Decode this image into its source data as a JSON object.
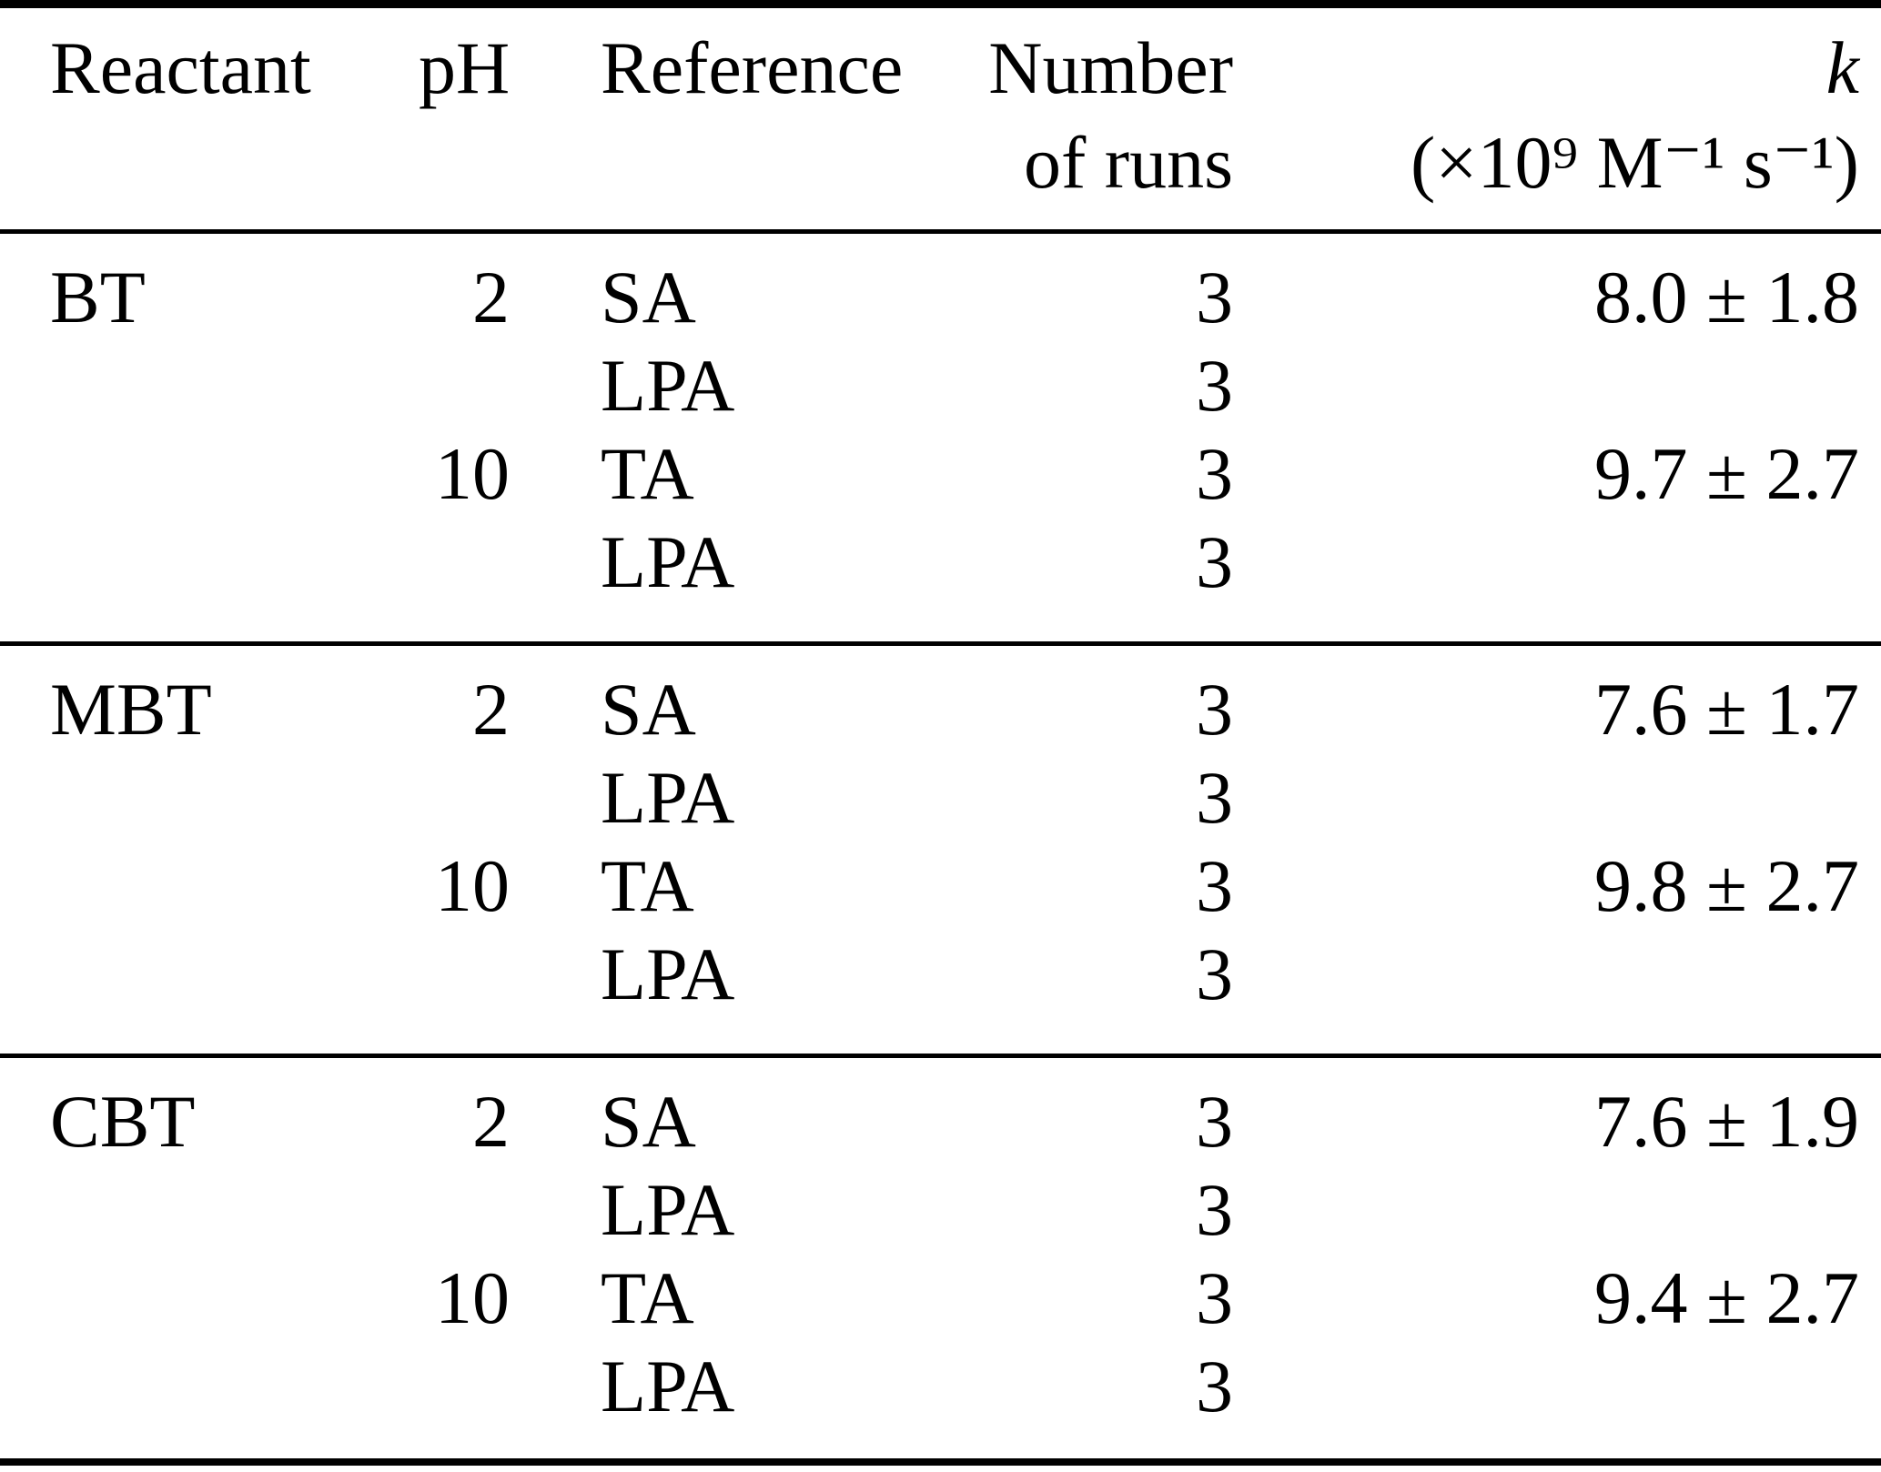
{
  "colors": {
    "text": "#000000",
    "background": "#ffffff",
    "rule": "#000000"
  },
  "table": {
    "columns": {
      "reactant": "Reactant",
      "ph": "pH",
      "reference": "Reference",
      "runs_line1": "Number",
      "runs_line2": "of runs",
      "k_symbol": "k",
      "k_unit": "(×10⁹ M⁻¹ s⁻¹)"
    },
    "sections": [
      {
        "reactant": "BT",
        "rows": [
          {
            "ph": "2",
            "reference": "SA",
            "runs": "3",
            "k": "8.0 ± 1.8"
          },
          {
            "ph": "",
            "reference": "LPA",
            "runs": "3",
            "k": ""
          },
          {
            "ph": "10",
            "reference": "TA",
            "runs": "3",
            "k": "9.7 ± 2.7"
          },
          {
            "ph": "",
            "reference": "LPA",
            "runs": "3",
            "k": ""
          }
        ]
      },
      {
        "reactant": "MBT",
        "rows": [
          {
            "ph": "2",
            "reference": "SA",
            "runs": "3",
            "k": "7.6 ± 1.7"
          },
          {
            "ph": "",
            "reference": "LPA",
            "runs": "3",
            "k": ""
          },
          {
            "ph": "10",
            "reference": "TA",
            "runs": "3",
            "k": "9.8 ± 2.7"
          },
          {
            "ph": "",
            "reference": "LPA",
            "runs": "3",
            "k": ""
          }
        ]
      },
      {
        "reactant": "CBT",
        "rows": [
          {
            "ph": "2",
            "reference": "SA",
            "runs": "3",
            "k": "7.6 ± 1.9"
          },
          {
            "ph": "",
            "reference": "LPA",
            "runs": "3",
            "k": ""
          },
          {
            "ph": "10",
            "reference": "TA",
            "runs": "3",
            "k": "9.4 ± 2.7"
          },
          {
            "ph": "",
            "reference": "LPA",
            "runs": "3",
            "k": ""
          }
        ]
      }
    ]
  }
}
